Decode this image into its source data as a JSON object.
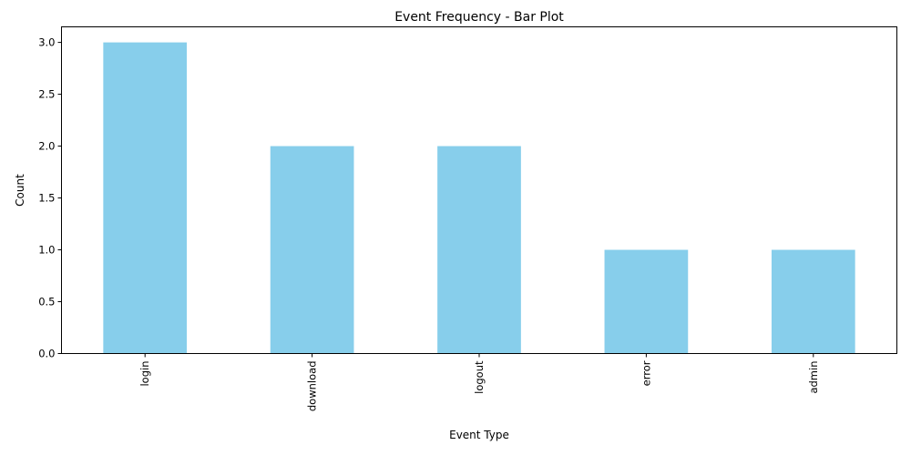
{
  "chart_data": {
    "type": "bar",
    "title": "Event Frequency - Bar Plot",
    "xlabel": "Event Type",
    "ylabel": "Count",
    "categories": [
      "login",
      "download",
      "logout",
      "error",
      "admin"
    ],
    "values": [
      3,
      2,
      2,
      1,
      1
    ],
    "ylim": [
      0,
      3.15
    ],
    "yticks": [
      "0.0",
      "0.5",
      "1.0",
      "1.5",
      "2.0",
      "2.5",
      "3.0"
    ],
    "bar_color": "#87ceeb",
    "grid": false,
    "legend": "none"
  }
}
